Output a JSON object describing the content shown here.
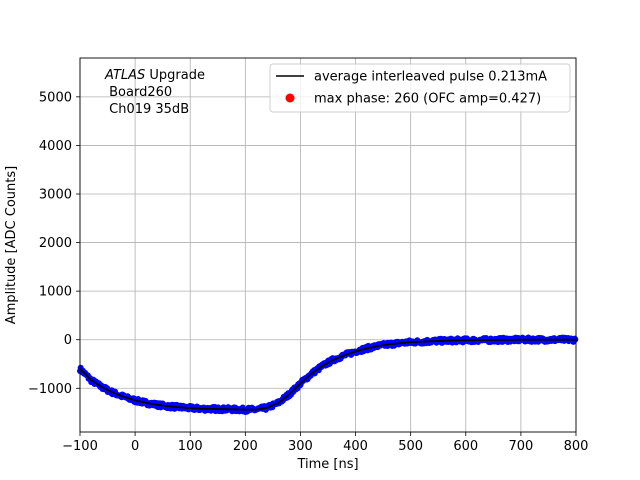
{
  "chart_data": {
    "type": "scatter",
    "title": "",
    "xlabel": "Time [ns]",
    "ylabel": "Amplitude [ADC Counts]",
    "xlim": [
      -100,
      800
    ],
    "ylim": [
      -1900,
      5800
    ],
    "x_ticks": [
      -100,
      0,
      100,
      200,
      300,
      400,
      500,
      600,
      700,
      800
    ],
    "y_ticks": [
      -1000,
      0,
      1000,
      2000,
      3000,
      4000,
      5000
    ],
    "grid": true,
    "legend_position": "top-right",
    "annotation": {
      "line1_italic": "ATLAS",
      "line1_rest": " Upgrade",
      "line2": " Board260",
      "line3": " Ch019 35dB"
    },
    "series": [
      {
        "name": "average interleaved pulse 0.213mA",
        "kind": "line",
        "color": "#000000",
        "x": [
          -100,
          -80,
          -60,
          -40,
          -20,
          0,
          20,
          40,
          60,
          80,
          100,
          120,
          140,
          160,
          180,
          200,
          220,
          240,
          260,
          280,
          300,
          320,
          340,
          360,
          380,
          400,
          420,
          440,
          460,
          480,
          500,
          540,
          580,
          620,
          660,
          700,
          740,
          780,
          800
        ],
        "y": [
          -600,
          -830,
          -980,
          -1090,
          -1180,
          -1250,
          -1300,
          -1340,
          -1370,
          -1390,
          -1410,
          -1420,
          -1425,
          -1430,
          -1435,
          -1440,
          -1440,
          -1400,
          -1300,
          -1120,
          -900,
          -700,
          -540,
          -410,
          -320,
          -240,
          -180,
          -130,
          -95,
          -70,
          -50,
          -30,
          -15,
          -10,
          -5,
          0,
          0,
          0,
          0
        ]
      },
      {
        "name": "max phase: 260 (OFC amp=0.427)",
        "kind": "point",
        "color": "#ff0000",
        "x": [
          260
        ],
        "y": [
          -1300
        ]
      }
    ],
    "scatter_color": "#0000ff"
  },
  "legend": {
    "entries": [
      "average interleaved pulse 0.213mA",
      "max phase: 260 (OFC amp=0.427)"
    ]
  }
}
